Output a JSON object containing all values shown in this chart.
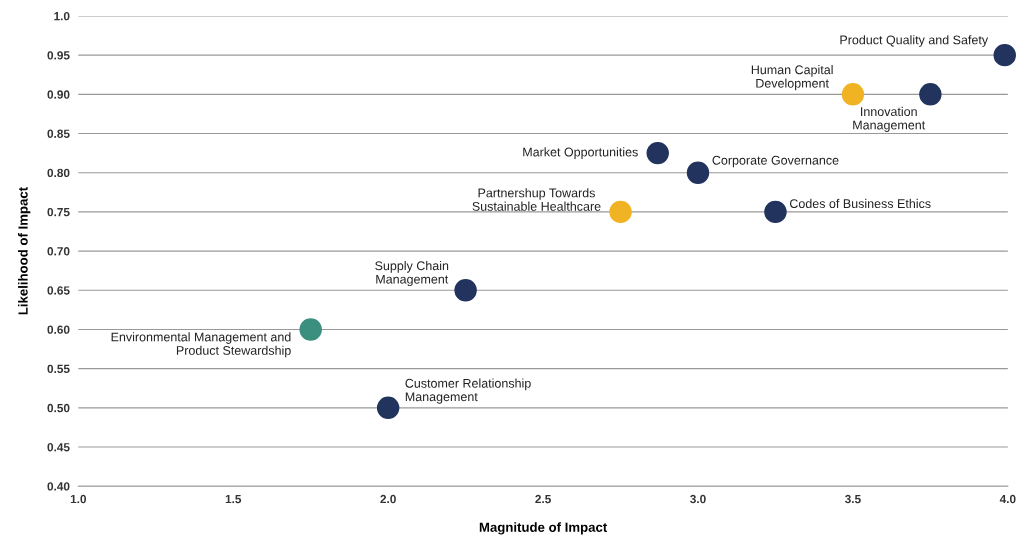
{
  "chart_data": {
    "type": "scatter",
    "xlabel": "Magnitude of Impact",
    "ylabel": "Likelihood of Impact",
    "x": [
      3.99,
      3.5,
      3.75,
      2.87,
      3.0,
      2.75,
      3.25,
      2.25,
      1.75,
      2.0
    ],
    "values": [
      0.95,
      0.9,
      0.9,
      0.825,
      0.8,
      0.75,
      0.75,
      0.65,
      0.6,
      0.5
    ],
    "colors": [
      "#22335e",
      "#f0b323",
      "#22335e",
      "#22335e",
      "#22335e",
      "#f0b323",
      "#22335e",
      "#22335e",
      "#3a8f7e",
      "#22335e"
    ],
    "marker": "circle",
    "grid": "y",
    "legend": false,
    "xlim": [
      1.0,
      4.0
    ],
    "ylim": [
      0.4,
      1.0
    ],
    "xticks": [
      {
        "value": 1.0,
        "label": "1.0"
      },
      {
        "value": 1.5,
        "label": "1.5"
      },
      {
        "value": 2.0,
        "label": "2.0"
      },
      {
        "value": 2.5,
        "label": "2.5"
      },
      {
        "value": 3.0,
        "label": "3.0"
      },
      {
        "value": 3.5,
        "label": "3.5"
      },
      {
        "value": 4.0,
        "label": "4.0"
      }
    ],
    "yticks": [
      {
        "value": 0.4,
        "label": "0.40"
      },
      {
        "value": 0.45,
        "label": "0.45"
      },
      {
        "value": 0.5,
        "label": "0.50"
      },
      {
        "value": 0.55,
        "label": "0.55"
      },
      {
        "value": 0.6,
        "label": "0.60"
      },
      {
        "value": 0.65,
        "label": "0.65"
      },
      {
        "value": 0.7,
        "label": "0.70"
      },
      {
        "value": 0.75,
        "label": "0.75"
      },
      {
        "value": 0.8,
        "label": "0.80"
      },
      {
        "value": 0.85,
        "label": "0.85"
      },
      {
        "value": 0.9,
        "label": "0.90"
      },
      {
        "value": 0.95,
        "label": "0.95"
      },
      {
        "value": 1.0,
        "label": "1.0"
      }
    ],
    "annotations": [
      {
        "text": "Product Quality and Safety",
        "x": 3.99,
        "y": 0.95
      },
      {
        "text": "Human Capital\nDevelopment",
        "x": 3.5,
        "y": 0.9
      },
      {
        "text": "Innovation\nManagement",
        "x": 3.75,
        "y": 0.9
      },
      {
        "text": "Market Opportunities",
        "x": 2.87,
        "y": 0.825
      },
      {
        "text": "Corporate Governance",
        "x": 3.0,
        "y": 0.8
      },
      {
        "text": "Partnershup Towards\nSustainable Healthcare",
        "x": 2.75,
        "y": 0.75
      },
      {
        "text": "Codes of Business Ethics",
        "x": 3.25,
        "y": 0.75
      },
      {
        "text": "Supply Chain\nManagement",
        "x": 2.25,
        "y": 0.65
      },
      {
        "text": "Environmental Management and\nProduct Stewardship",
        "x": 1.75,
        "y": 0.6
      },
      {
        "text": "Customer Relationship\nManagement",
        "x": 2.0,
        "y": 0.5
      }
    ]
  }
}
